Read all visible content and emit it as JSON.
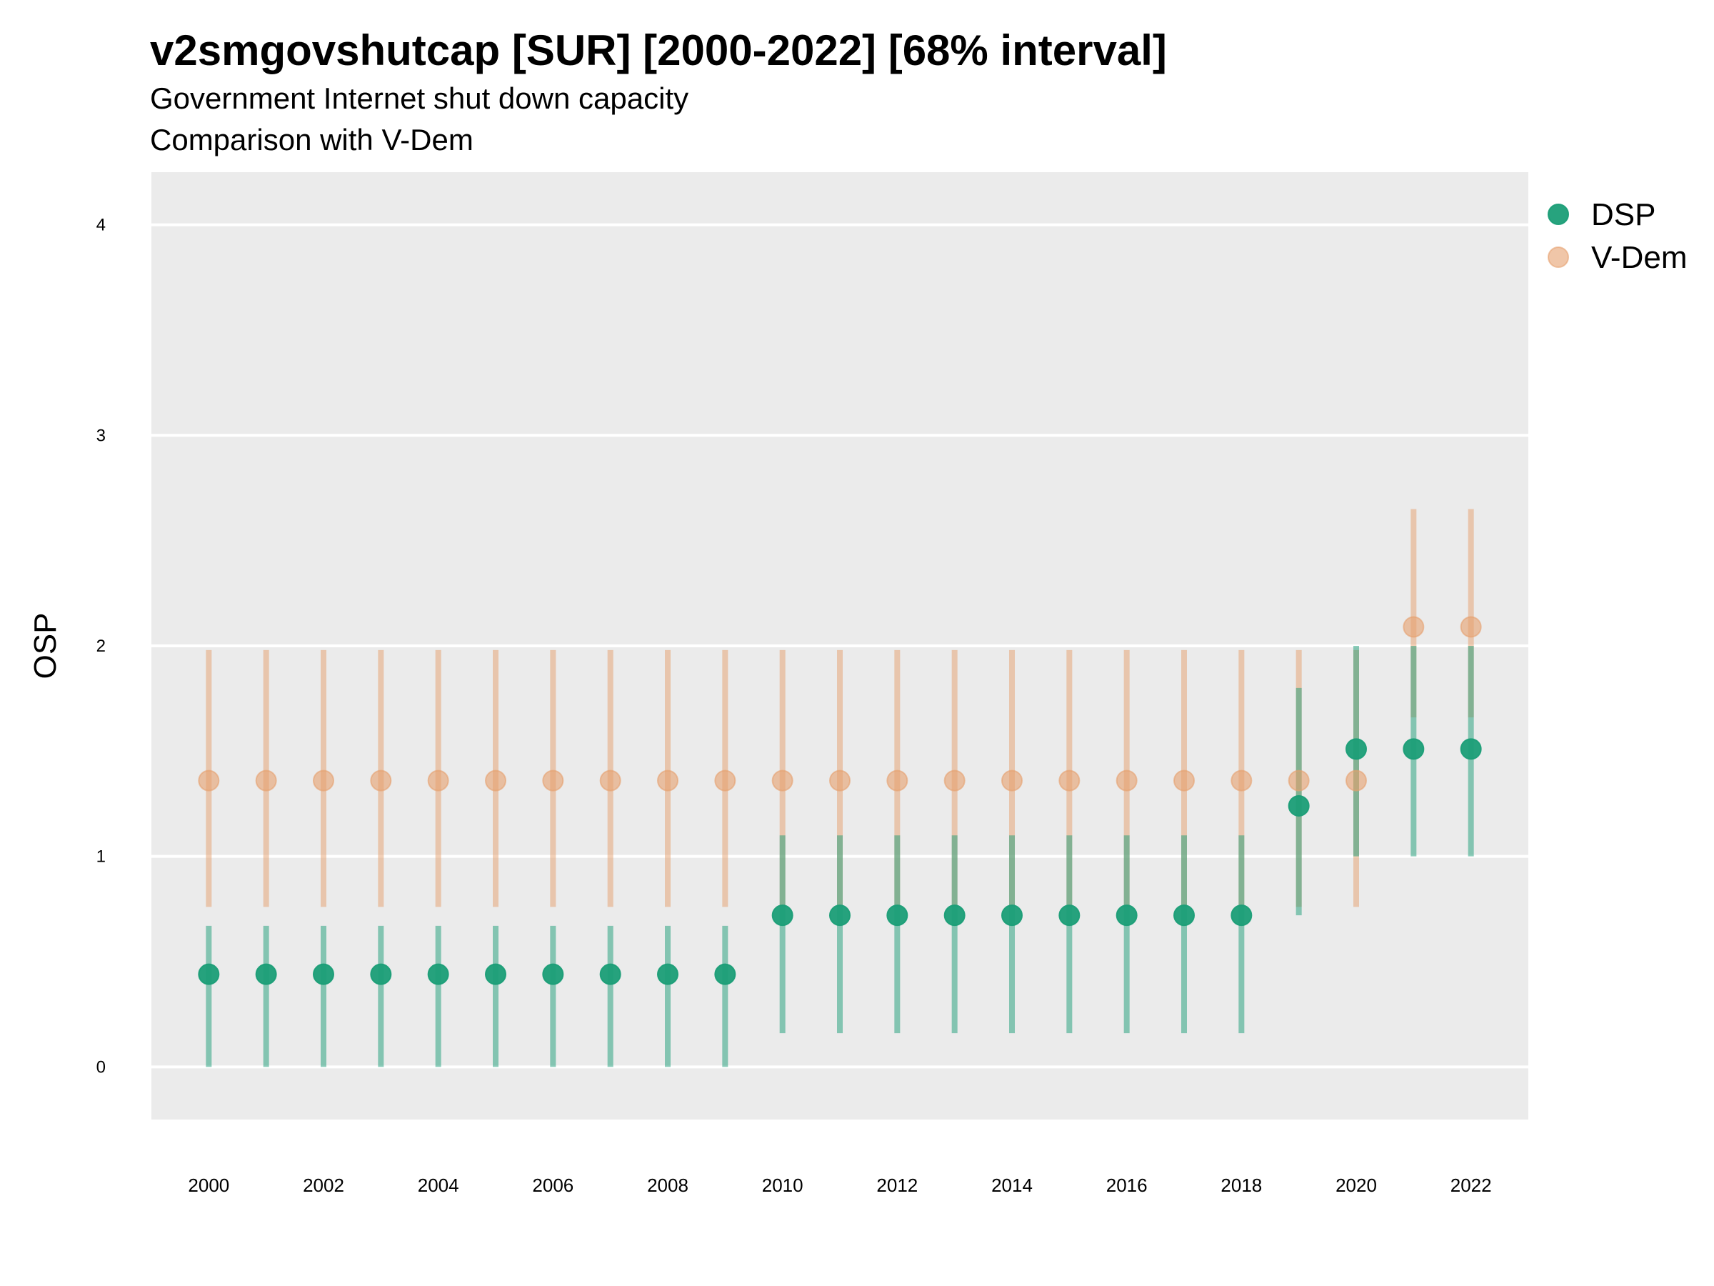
{
  "chart_data": {
    "type": "scatter",
    "title": "v2smgovshutcap [SUR] [2000-2022] [68% interval]",
    "subtitle_lines": [
      "Government Internet shut down capacity",
      "Comparison with V-Dem"
    ],
    "xlabel": "",
    "ylabel": "OSP",
    "xlim": [
      1999,
      2023
    ],
    "ylim": [
      -0.25,
      4.25
    ],
    "y_ticks": [
      0,
      1,
      2,
      3,
      4
    ],
    "x_ticks": [
      2000,
      2002,
      2004,
      2006,
      2008,
      2010,
      2012,
      2014,
      2016,
      2018,
      2020,
      2022
    ],
    "grid": true,
    "legend_position": "top-right",
    "x": [
      2000,
      2001,
      2002,
      2003,
      2004,
      2005,
      2006,
      2007,
      2008,
      2009,
      2010,
      2011,
      2012,
      2013,
      2014,
      2015,
      2016,
      2017,
      2018,
      2019,
      2020,
      2021,
      2022
    ],
    "series": [
      {
        "name": "V-Dem",
        "color": "#E6A06E",
        "values": [
          1.36,
          1.36,
          1.36,
          1.36,
          1.36,
          1.36,
          1.36,
          1.36,
          1.36,
          1.36,
          1.36,
          1.36,
          1.36,
          1.36,
          1.36,
          1.36,
          1.36,
          1.36,
          1.36,
          1.36,
          1.36,
          2.09,
          2.09
        ],
        "lower": [
          0.76,
          0.76,
          0.76,
          0.76,
          0.76,
          0.76,
          0.76,
          0.76,
          0.76,
          0.76,
          0.76,
          0.76,
          0.76,
          0.76,
          0.76,
          0.76,
          0.76,
          0.76,
          0.76,
          0.76,
          0.76,
          1.66,
          1.66
        ],
        "upper": [
          1.98,
          1.98,
          1.98,
          1.98,
          1.98,
          1.98,
          1.98,
          1.98,
          1.98,
          1.98,
          1.98,
          1.98,
          1.98,
          1.98,
          1.98,
          1.98,
          1.98,
          1.98,
          1.98,
          1.98,
          1.98,
          2.65,
          2.65
        ]
      },
      {
        "name": "DSP",
        "color": "#1B9E77",
        "values": [
          0.44,
          0.44,
          0.44,
          0.44,
          0.44,
          0.44,
          0.44,
          0.44,
          0.44,
          0.44,
          0.72,
          0.72,
          0.72,
          0.72,
          0.72,
          0.72,
          0.72,
          0.72,
          0.72,
          1.24,
          1.51,
          1.51,
          1.51
        ],
        "lower": [
          0.0,
          0.0,
          0.0,
          0.0,
          0.0,
          0.0,
          0.0,
          0.0,
          0.0,
          0.0,
          0.16,
          0.16,
          0.16,
          0.16,
          0.16,
          0.16,
          0.16,
          0.16,
          0.16,
          0.72,
          1.0,
          1.0,
          1.0
        ],
        "upper": [
          0.67,
          0.67,
          0.67,
          0.67,
          0.67,
          0.67,
          0.67,
          0.67,
          0.67,
          0.67,
          1.1,
          1.1,
          1.1,
          1.1,
          1.1,
          1.1,
          1.1,
          1.1,
          1.1,
          1.8,
          2.0,
          2.0,
          2.0
        ]
      }
    ],
    "legend": [
      {
        "name": "DSP",
        "color": "#1B9E77"
      },
      {
        "name": "V-Dem",
        "color": "#E6A06E"
      }
    ],
    "panel_color": "#EBEBEB"
  }
}
